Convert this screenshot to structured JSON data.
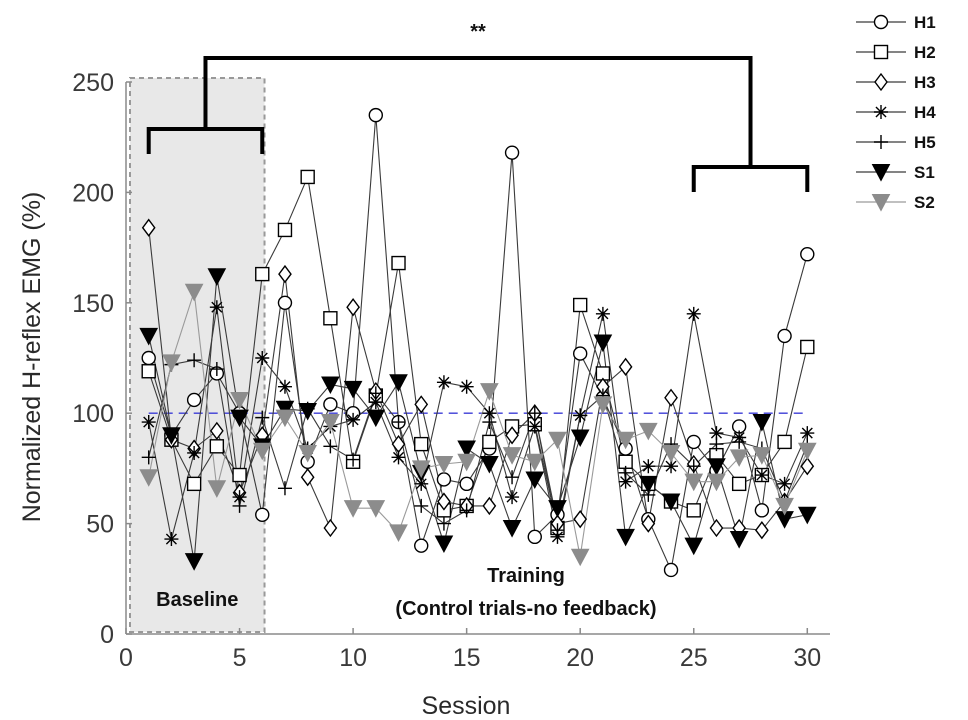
{
  "chart_data": {
    "type": "line",
    "xlabel": "Session",
    "ylabel": "Normalized H-reflex EMG (%)",
    "xlim": [
      0,
      31
    ],
    "ylim": [
      0,
      250
    ],
    "xticks": [
      0,
      5,
      10,
      15,
      20,
      25,
      30
    ],
    "yticks": [
      0,
      50,
      100,
      150,
      200,
      250
    ],
    "reference_line": 100,
    "baseline_label": "Baseline",
    "baseline_sessions": [
      1,
      6
    ],
    "training_label_line1": "Training",
    "training_label_line2": "(Control trials-no feedback)",
    "significance_label": "**",
    "bracket_right_sessions": [
      25,
      30
    ],
    "legend_position": "top-right",
    "x": [
      1,
      2,
      3,
      4,
      5,
      6,
      7,
      8,
      9,
      10,
      11,
      12,
      13,
      14,
      15,
      16,
      17,
      18,
      19,
      20,
      21,
      22,
      23,
      24,
      25,
      26,
      27,
      28,
      29,
      30
    ],
    "series": [
      {
        "name": "H1",
        "marker": "circle",
        "color": "#000000",
        "line_color": "#3a3a3a",
        "values": [
          125,
          90,
          106,
          118,
          100,
          54,
          150,
          78,
          104,
          100,
          235,
          96,
          40,
          70,
          68,
          84,
          218,
          44,
          54,
          127,
          107,
          84,
          52,
          29,
          87,
          74,
          94,
          56,
          135,
          172
        ]
      },
      {
        "name": "H2",
        "marker": "square",
        "color": "#000000",
        "line_color": "#3a3a3a",
        "values": [
          119,
          88,
          68,
          85,
          72,
          163,
          183,
          207,
          143,
          78,
          108,
          168,
          86,
          56,
          58,
          87,
          94,
          95,
          48,
          149,
          118,
          78,
          68,
          60,
          56,
          81,
          68,
          72,
          87,
          130
        ]
      },
      {
        "name": "H3",
        "marker": "diamond",
        "color": "#000000",
        "line_color": "#3a3a3a",
        "values": [
          184,
          88,
          84,
          92,
          64,
          90,
          163,
          71,
          48,
          148,
          110,
          86,
          104,
          60,
          58,
          58,
          90,
          100,
          50,
          52,
          112,
          121,
          50,
          107,
          77,
          48,
          48,
          47,
          60,
          76
        ]
      },
      {
        "name": "H4",
        "marker": "asterisk",
        "color": "#000000",
        "line_color": "#3a3a3a",
        "values": [
          96,
          43,
          82,
          148,
          62,
          125,
          112,
          84,
          94,
          97,
          105,
          80,
          68,
          114,
          112,
          100,
          62,
          94,
          44,
          99,
          145,
          69,
          76,
          76,
          145,
          91,
          89,
          72,
          68,
          91
        ]
      },
      {
        "name": "H5",
        "marker": "plus",
        "color": "#000000",
        "line_color": "#3a3a3a",
        "values": [
          80,
          122,
          124,
          120,
          58,
          98,
          66,
          102,
          85,
          79,
          109,
          96,
          58,
          50,
          56,
          96,
          71,
          100,
          47,
          99,
          108,
          73,
          63,
          86,
          76,
          86,
          87,
          84,
          60,
          86
        ]
      },
      {
        "name": "S1",
        "marker": "triangle-down",
        "color": "#000000",
        "line_color": "#3a3a3a",
        "values": [
          135,
          90,
          33,
          162,
          98,
          85,
          102,
          101,
          113,
          111,
          98,
          114,
          73,
          41,
          84,
          77,
          48,
          70,
          57,
          89,
          132,
          44,
          68,
          60,
          40,
          76,
          43,
          96,
          52,
          54
        ]
      },
      {
        "name": "S2",
        "marker": "triangle-down",
        "color": "#8c8c8c",
        "line_color": "#9a9a9a",
        "values": [
          71,
          123,
          155,
          66,
          106,
          83,
          98,
          82,
          96,
          57,
          57,
          46,
          75,
          77,
          78,
          110,
          81,
          78,
          88,
          35,
          104,
          88,
          92,
          82,
          69,
          69,
          80,
          81,
          58,
          83
        ]
      }
    ]
  }
}
